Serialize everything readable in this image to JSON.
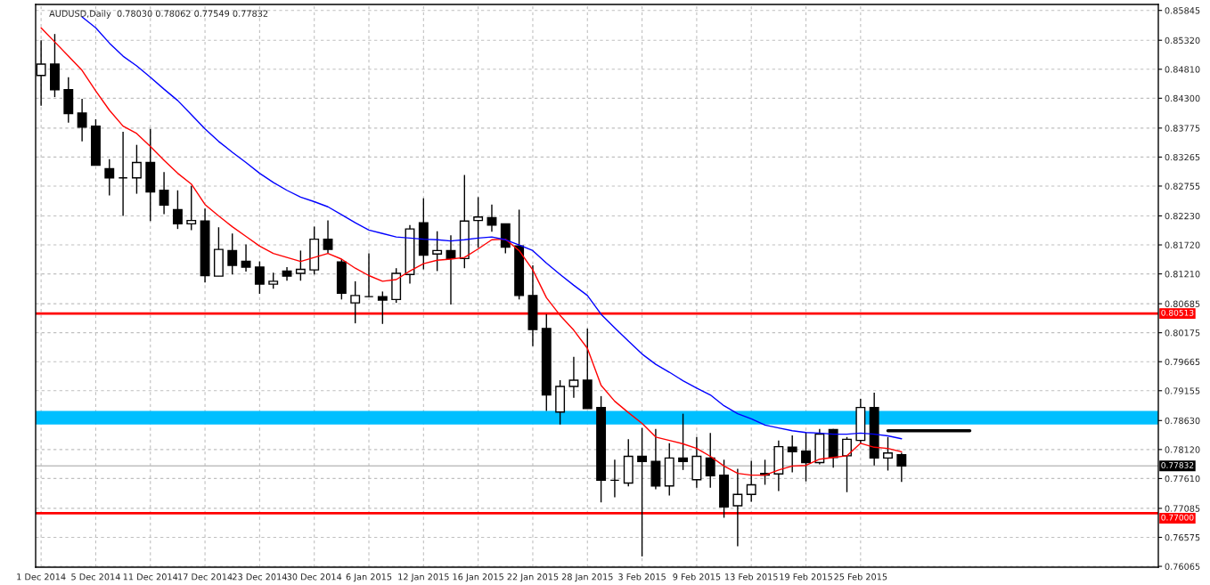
{
  "chart_data": {
    "type": "candlestick",
    "title": "AUDUSD,Daily  0.78030 0.78062 0.77549 0.77832",
    "categories": [
      "1 Dec 2014",
      null,
      null,
      null,
      "5 Dec 2014",
      null,
      null,
      null,
      "11 Dec 2014",
      null,
      null,
      null,
      "17 Dec 2014",
      null,
      null,
      null,
      "23 Dec 2014",
      null,
      null,
      null,
      "30 Dec 2014",
      null,
      null,
      null,
      "6 Jan 2015",
      null,
      null,
      null,
      "12 Jan 2015",
      null,
      null,
      null,
      "16 Jan 2015",
      null,
      null,
      null,
      "22 Jan 2015",
      null,
      null,
      null,
      "28 Jan 2015",
      null,
      null,
      null,
      "3 Feb 2015",
      null,
      null,
      null,
      "9 Feb 2015",
      null,
      null,
      null,
      "13 Feb 2015",
      null,
      null,
      null,
      "19 Feb 2015",
      null,
      null,
      null,
      "25 Feb 2015",
      null,
      null,
      null,
      null,
      null,
      null,
      null,
      null,
      null,
      null,
      null,
      null,
      null,
      null,
      null,
      null,
      null,
      null,
      null,
      null,
      null
    ],
    "ohlc": [
      [
        0.847,
        0.8532,
        0.8417,
        0.849
      ],
      [
        0.849,
        0.8543,
        0.8432,
        0.8445
      ],
      [
        0.8445,
        0.8467,
        0.8387,
        0.8403
      ],
      [
        0.8404,
        0.8429,
        0.8354,
        0.8379
      ],
      [
        0.8381,
        0.8393,
        0.8312,
        0.8312
      ],
      [
        0.8306,
        0.8323,
        0.8259,
        0.829
      ],
      [
        0.829,
        0.8371,
        0.8223,
        0.829
      ],
      [
        0.829,
        0.8348,
        0.8262,
        0.8317
      ],
      [
        0.8317,
        0.8376,
        0.8214,
        0.8265
      ],
      [
        0.8268,
        0.83,
        0.8226,
        0.8242
      ],
      [
        0.8234,
        0.8268,
        0.82,
        0.8209
      ],
      [
        0.8209,
        0.8276,
        0.8198,
        0.8215
      ],
      [
        0.8214,
        0.8236,
        0.8106,
        0.8118
      ],
      [
        0.8117,
        0.8203,
        0.8117,
        0.8164
      ],
      [
        0.8162,
        0.8192,
        0.812,
        0.8136
      ],
      [
        0.8143,
        0.8173,
        0.8125,
        0.8133
      ],
      [
        0.8133,
        0.8143,
        0.8086,
        0.8103
      ],
      [
        0.8103,
        0.8123,
        0.8095,
        0.8108
      ],
      [
        0.8126,
        0.8133,
        0.8109,
        0.8117
      ],
      [
        0.8122,
        0.8162,
        0.8109,
        0.8129
      ],
      [
        0.8128,
        0.8204,
        0.812,
        0.8182
      ],
      [
        0.8182,
        0.8215,
        0.8157,
        0.8164
      ],
      [
        0.8142,
        0.8147,
        0.8076,
        0.8087
      ],
      [
        0.807,
        0.8108,
        0.8034,
        0.8083
      ],
      [
        0.8081,
        0.8157,
        0.8081,
        0.8081
      ],
      [
        0.8081,
        0.809,
        0.8033,
        0.8075
      ],
      [
        0.8076,
        0.8131,
        0.807,
        0.8122
      ],
      [
        0.812,
        0.8207,
        0.8104,
        0.82
      ],
      [
        0.8211,
        0.8254,
        0.8129,
        0.8154
      ],
      [
        0.8156,
        0.8196,
        0.8126,
        0.8162
      ],
      [
        0.8162,
        0.8189,
        0.8067,
        0.8148
      ],
      [
        0.8148,
        0.8295,
        0.8131,
        0.8214
      ],
      [
        0.8215,
        0.8256,
        0.8167,
        0.8221
      ],
      [
        0.822,
        0.8243,
        0.8195,
        0.8207
      ],
      [
        0.8209,
        0.8209,
        0.8157,
        0.8168
      ],
      [
        0.817,
        0.8234,
        0.8076,
        0.8083
      ],
      [
        0.8083,
        0.8136,
        0.7994,
        0.8023
      ],
      [
        0.8025,
        0.805,
        0.788,
        0.7908
      ],
      [
        0.7878,
        0.7934,
        0.7856,
        0.7923
      ],
      [
        0.7923,
        0.7975,
        0.7903,
        0.7934
      ],
      [
        0.7934,
        0.8025,
        0.7884,
        0.7884
      ],
      [
        0.7886,
        0.7906,
        0.7719,
        0.7758
      ],
      [
        0.7758,
        0.7794,
        0.7728,
        0.7758
      ],
      [
        0.7753,
        0.783,
        0.7747,
        0.78
      ],
      [
        0.78,
        0.785,
        0.7624,
        0.7791
      ],
      [
        0.7791,
        0.7848,
        0.7742,
        0.7748
      ],
      [
        0.7748,
        0.7823,
        0.7731,
        0.7797
      ],
      [
        0.7797,
        0.7875,
        0.7776,
        0.7791
      ],
      [
        0.7759,
        0.7834,
        0.7745,
        0.78
      ],
      [
        0.7797,
        0.7841,
        0.7745,
        0.7766
      ],
      [
        0.7767,
        0.7794,
        0.7692,
        0.7711
      ],
      [
        0.7713,
        0.7778,
        0.7642,
        0.7733
      ],
      [
        0.7733,
        0.7792,
        0.772,
        0.775
      ],
      [
        0.777,
        0.7794,
        0.775,
        0.7767
      ],
      [
        0.7769,
        0.7828,
        0.7739,
        0.7817
      ],
      [
        0.7816,
        0.7837,
        0.7772,
        0.7808
      ],
      [
        0.7809,
        0.7842,
        0.7756,
        0.7789
      ],
      [
        0.7789,
        0.7848,
        0.7786,
        0.7839
      ],
      [
        0.7847,
        0.7848,
        0.778,
        0.7798
      ],
      [
        0.7801,
        0.7834,
        0.7737,
        0.783
      ],
      [
        0.7828,
        0.7901,
        0.7822,
        0.7886
      ],
      [
        0.7886,
        0.7912,
        0.7784,
        0.7797
      ],
      [
        0.7797,
        0.7834,
        0.7775,
        0.7806
      ],
      [
        0.7803,
        0.78062,
        0.77549,
        0.77832
      ],
      null,
      null,
      null,
      null,
      null,
      null,
      null,
      null,
      null,
      null,
      null,
      null,
      null,
      null,
      null,
      null,
      null,
      null
    ],
    "series": [
      {
        "type": "line",
        "color": "#ff0000",
        "values": [
          0.8554,
          0.8529,
          0.8504,
          0.8479,
          0.8443,
          0.8409,
          0.8381,
          0.8368,
          0.8345,
          0.8321,
          0.8298,
          0.8279,
          0.8243,
          0.8223,
          0.8204,
          0.8187,
          0.817,
          0.8157,
          0.815,
          0.8143,
          0.815,
          0.8157,
          0.8147,
          0.8131,
          0.8118,
          0.8108,
          0.8111,
          0.8126,
          0.8139,
          0.8145,
          0.8147,
          0.815,
          0.8165,
          0.8181,
          0.8182,
          0.8162,
          0.8128,
          0.8079,
          0.8048,
          0.8022,
          0.799,
          0.7925,
          0.7897,
          0.7877,
          0.7858,
          0.7834,
          0.7828,
          0.7822,
          0.7814,
          0.78,
          0.7783,
          0.777,
          0.7767,
          0.7767,
          0.7776,
          0.7783,
          0.7784,
          0.7795,
          0.7798,
          0.7801,
          0.7823,
          0.7816,
          0.7814,
          0.7808,
          null,
          null,
          null,
          null,
          null,
          null,
          null,
          null,
          null,
          null,
          null,
          null,
          null,
          null,
          null,
          null,
          null,
          null
        ]
      },
      {
        "type": "line",
        "color": "#0000ff",
        "values": [
          null,
          null,
          null,
          0.8573,
          0.8554,
          0.8527,
          0.8504,
          0.8487,
          0.8467,
          0.8446,
          0.8426,
          0.8401,
          0.8376,
          0.8354,
          0.8335,
          0.8317,
          0.8298,
          0.8282,
          0.8268,
          0.8256,
          0.8248,
          0.8239,
          0.8225,
          0.8211,
          0.8198,
          0.8192,
          0.8186,
          0.8184,
          0.8182,
          0.8181,
          0.8179,
          0.8181,
          0.8184,
          0.8186,
          0.8181,
          0.8172,
          0.8162,
          0.814,
          0.812,
          0.8101,
          0.8083,
          0.805,
          0.8026,
          0.8003,
          0.798,
          0.7962,
          0.7948,
          0.7933,
          0.792,
          0.7908,
          0.7889,
          0.7875,
          0.7866,
          0.7855,
          0.785,
          0.7845,
          0.7842,
          0.7841,
          0.7839,
          0.7839,
          0.7841,
          0.7839,
          0.7836,
          0.7831,
          null,
          null,
          null,
          null,
          null,
          null,
          null,
          null,
          null,
          null,
          null,
          null,
          null,
          null,
          null,
          null,
          null,
          null
        ]
      },
      {
        "type": "line",
        "color": "#000000",
        "values": [
          null,
          null,
          null,
          null,
          null,
          null,
          null,
          null,
          null,
          null,
          null,
          null,
          null,
          null,
          null,
          null,
          null,
          null,
          null,
          null,
          null,
          null,
          null,
          null,
          null,
          null,
          null,
          null,
          null,
          null,
          null,
          null,
          null,
          null,
          null,
          null,
          null,
          null,
          null,
          null,
          null,
          null,
          null,
          null,
          null,
          null,
          null,
          null,
          null,
          null,
          null,
          null,
          null,
          null,
          null,
          null,
          null,
          null,
          null,
          null,
          null,
          null,
          0.7845,
          0.7845,
          0.7845,
          0.7845,
          0.7845,
          0.7845,
          0.7845,
          null,
          null,
          null,
          null,
          null,
          null,
          null,
          null,
          null,
          null,
          null,
          null,
          null
        ]
      }
    ],
    "ylim": [
      0.7605,
      0.8595
    ],
    "yticks": [
      {
        "value": 0.85845,
        "label": "0.85845"
      },
      {
        "value": 0.8532,
        "label": "0.85320"
      },
      {
        "value": 0.8481,
        "label": "0.84810"
      },
      {
        "value": 0.843,
        "label": "0.84300"
      },
      {
        "value": 0.83775,
        "label": "0.83775"
      },
      {
        "value": 0.83265,
        "label": "0.83265"
      },
      {
        "value": 0.82755,
        "label": "0.82755"
      },
      {
        "value": 0.8223,
        "label": "0.82230"
      },
      {
        "value": 0.8172,
        "label": "0.81720"
      },
      {
        "value": 0.8121,
        "label": "0.81210"
      },
      {
        "value": 0.80685,
        "label": "0.80685"
      },
      {
        "value": 0.80175,
        "label": "0.80175"
      },
      {
        "value": 0.79665,
        "label": "0.79665"
      },
      {
        "value": 0.79155,
        "label": "0.79155"
      },
      {
        "value": 0.7863,
        "label": "0.78630"
      },
      {
        "value": 0.7812,
        "label": "0.78120"
      },
      {
        "value": 0.7761,
        "label": "0.77610"
      },
      {
        "value": 0.77085,
        "label": "0.77085"
      },
      {
        "value": 0.76575,
        "label": "0.76575"
      },
      {
        "value": 0.76065,
        "label": "0.76065"
      }
    ],
    "ref_lines": [
      {
        "axis": "y",
        "value": 0.80513,
        "label": "0.80513",
        "color": "#ff0000"
      },
      {
        "axis": "y",
        "value": 0.77,
        "label": "0.77000",
        "color": "#ff0000"
      },
      {
        "axis": "y",
        "value": 0.77832,
        "label": "0.77832",
        "color": "#c0c0c0"
      }
    ],
    "bands": [
      {
        "axis": "y",
        "from": 0.7856,
        "to": 0.788,
        "color": "#00bfff"
      }
    ],
    "grid": true
  }
}
